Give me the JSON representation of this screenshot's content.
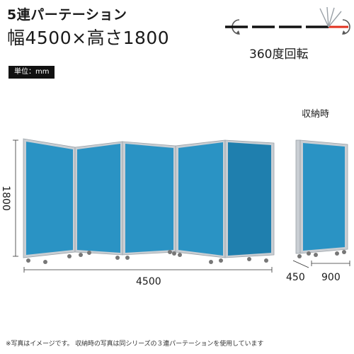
{
  "header": {
    "title": "5連パーテーション",
    "size_text": "幅4500×高さ1800",
    "unit_badge": "単位：mm"
  },
  "rotation": {
    "label": "360度回転"
  },
  "storage": {
    "label": "収納時"
  },
  "dimensions": {
    "height": "1800",
    "width": "4500",
    "stored_depth": "450",
    "stored_width": "900"
  },
  "colors": {
    "panel_fill": "#2a93c4",
    "panel_fill_dark": "#1f7fae",
    "frame": "#c9ced3",
    "frame_edge": "#9aa1a7",
    "badge_bg": "#111111",
    "arrow_red": "#e0301e"
  },
  "footnote": {
    "text": "※写真はイメージです。 収納時の写真は同シリーズの３連パーテーションを使用しています"
  }
}
